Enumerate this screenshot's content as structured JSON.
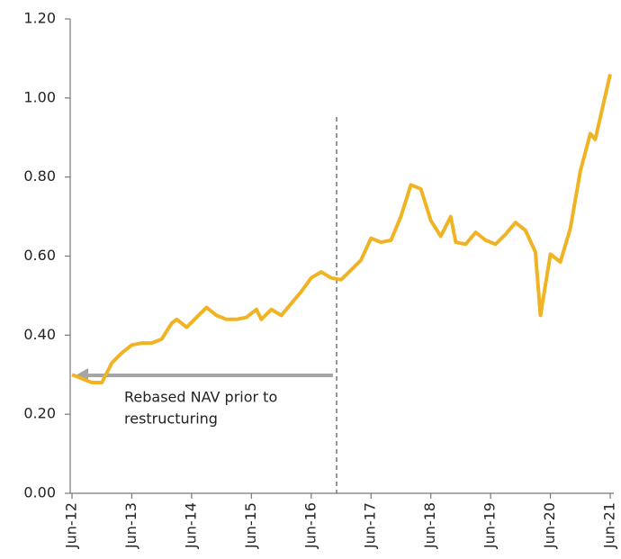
{
  "chart_data": {
    "type": "line",
    "annotation": [
      "Rebased NAV prior to",
      "restructuring"
    ],
    "x": [
      "Jun-12",
      "Aug-12",
      "Oct-12",
      "Dec-12",
      "Feb-13",
      "Apr-13",
      "Jun-13",
      "Aug-13",
      "Oct-13",
      "Dec-13",
      "Feb-14",
      "Mar-14",
      "May-14",
      "Jul-14",
      "Sep-14",
      "Nov-14",
      "Jan-15",
      "Mar-15",
      "May-15",
      "Jul-15",
      "Aug-15",
      "Oct-15",
      "Dec-15",
      "Feb-16",
      "Apr-16",
      "Jun-16",
      "Aug-16",
      "Oct-16",
      "Dec-16",
      "Feb-17",
      "Apr-17",
      "Jun-17",
      "Aug-17",
      "Oct-17",
      "Dec-17",
      "Feb-18",
      "Apr-18",
      "Jun-18",
      "Aug-18",
      "Oct-18",
      "Nov-18",
      "Jan-19",
      "Mar-19",
      "May-19",
      "Jul-19",
      "Sep-19",
      "Nov-19",
      "Jan-20",
      "Mar-20",
      "Apr-20",
      "Jun-20",
      "Aug-20",
      "Oct-20",
      "Dec-20",
      "Feb-21",
      "Mar-21",
      "Apr-21",
      "Jun-21"
    ],
    "series": [
      {
        "name": "NAV",
        "color": "#f0b323",
        "values": [
          0.3,
          0.29,
          0.28,
          0.28,
          0.33,
          0.355,
          0.375,
          0.38,
          0.38,
          0.39,
          0.43,
          0.44,
          0.42,
          0.445,
          0.47,
          0.45,
          0.44,
          0.44,
          0.445,
          0.465,
          0.44,
          0.465,
          0.45,
          0.48,
          0.51,
          0.545,
          0.56,
          0.545,
          0.54,
          0.565,
          0.59,
          0.645,
          0.635,
          0.64,
          0.7,
          0.78,
          0.77,
          0.69,
          0.65,
          0.7,
          0.635,
          0.63,
          0.66,
          0.64,
          0.63,
          0.655,
          0.685,
          0.665,
          0.61,
          0.45,
          0.605,
          0.585,
          0.67,
          0.815,
          0.91,
          0.895,
          0.95,
          1.06
        ]
      }
    ],
    "xlim": [
      "Jun-12",
      "Jun-21"
    ],
    "xticks": [
      "Jun-12",
      "Jun-13",
      "Jun-14",
      "Jun-15",
      "Jun-16",
      "Jun-17",
      "Jun-18",
      "Jun-19",
      "Jun-20",
      "Jun-21"
    ],
    "ylim": [
      0,
      1.2
    ],
    "yticks": [
      {
        "value": 0,
        "label": "0.00"
      },
      {
        "value": 0.2,
        "label": "0.20"
      },
      {
        "value": 0.4,
        "label": "0.40"
      },
      {
        "value": 0.6,
        "label": "0.60"
      },
      {
        "value": 0.8,
        "label": "0.80"
      },
      {
        "value": 1.0,
        "label": "1.00"
      },
      {
        "value": 1.2,
        "label": "1.20"
      }
    ]
  }
}
